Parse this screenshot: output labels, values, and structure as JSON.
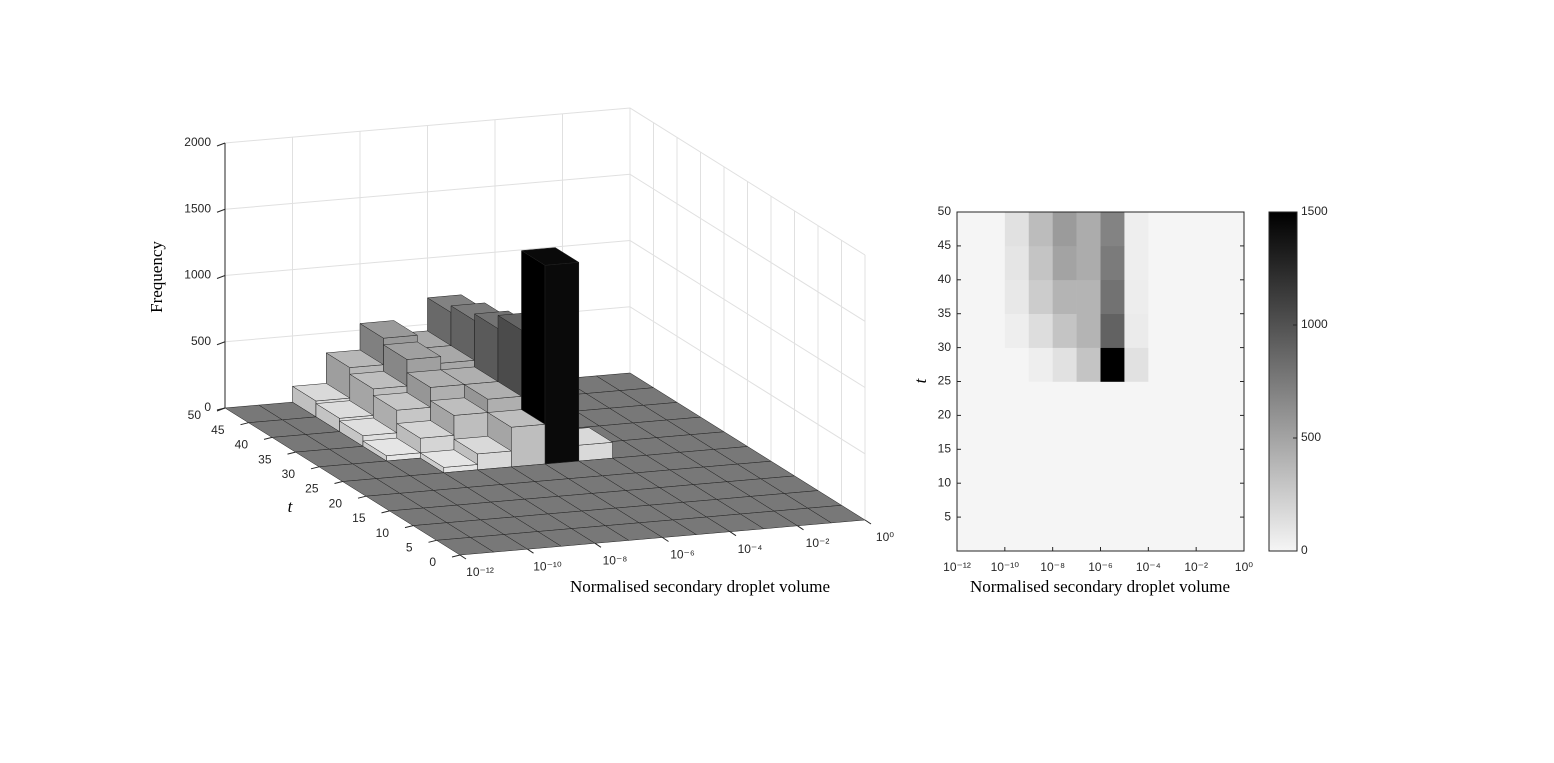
{
  "chart_data": [
    {
      "type": "bar3d",
      "xlabel": "Normalised secondary droplet volume",
      "ylabel": "t",
      "zlabel": "Frequency",
      "log_x": true,
      "xlim": [
        1e-12,
        1
      ],
      "xticks": [
        {
          "value": 1e-12,
          "label": "10⁻¹²"
        },
        {
          "value": 1e-10,
          "label": "10⁻¹⁰"
        },
        {
          "value": 1e-08,
          "label": "10⁻⁸"
        },
        {
          "value": 1e-06,
          "label": "10⁻⁶"
        },
        {
          "value": 0.0001,
          "label": "10⁻⁴"
        },
        {
          "value": 0.01,
          "label": "10⁻²"
        },
        {
          "value": 1,
          "label": "10⁰"
        }
      ],
      "ylim": [
        0,
        50
      ],
      "yticks": [
        0,
        5,
        10,
        15,
        20,
        25,
        30,
        35,
        40,
        45,
        50
      ],
      "zlim": [
        0,
        2000
      ],
      "zticks": [
        0,
        500,
        1000,
        1500,
        2000
      ],
      "grid": true,
      "x_bins": [
        1e-12,
        1e-11,
        1e-10,
        1e-09,
        1e-08,
        1e-07,
        1e-06,
        1e-05,
        0.0001,
        0.001,
        0.01,
        0.1,
        1
      ],
      "t_bins": [
        0,
        5,
        10,
        15,
        20,
        25,
        30,
        35,
        40,
        45,
        50
      ],
      "values": [
        [
          0,
          0,
          0,
          0,
          0,
          0,
          0,
          0,
          0,
          0,
          0,
          0
        ],
        [
          0,
          0,
          0,
          0,
          0,
          0,
          0,
          0,
          0,
          0,
          0,
          0
        ],
        [
          0,
          0,
          0,
          0,
          0,
          0,
          0,
          0,
          0,
          0,
          0,
          0
        ],
        [
          0,
          0,
          0,
          0,
          0,
          0,
          0,
          0,
          0,
          0,
          0,
          0
        ],
        [
          0,
          0,
          0,
          0,
          0,
          0,
          0,
          0,
          0,
          0,
          0,
          0
        ],
        [
          0,
          0,
          0,
          40,
          120,
          300,
          1500,
          120,
          0,
          0,
          0,
          0
        ],
        [
          0,
          0,
          40,
          150,
          300,
          400,
          900,
          60,
          0,
          0,
          0,
          0
        ],
        [
          0,
          0,
          80,
          250,
          400,
          400,
          800,
          50,
          0,
          0,
          0,
          0
        ],
        [
          0,
          0,
          100,
          300,
          500,
          450,
          750,
          40,
          0,
          0,
          0,
          0
        ],
        [
          0,
          0,
          120,
          350,
          550,
          450,
          700,
          40,
          0,
          0,
          0,
          0
        ]
      ]
    },
    {
      "type": "heatmap",
      "xlabel": "Normalised secondary droplet volume",
      "ylabel": "t",
      "log_x": true,
      "xlim": [
        1e-12,
        1
      ],
      "xticks": [
        {
          "value": 1e-12,
          "label": "10⁻¹²"
        },
        {
          "value": 1e-10,
          "label": "10⁻¹⁰"
        },
        {
          "value": 1e-08,
          "label": "10⁻⁸"
        },
        {
          "value": 1e-06,
          "label": "10⁻⁶"
        },
        {
          "value": 0.0001,
          "label": "10⁻⁴"
        },
        {
          "value": 0.01,
          "label": "10⁻²"
        },
        {
          "value": 1,
          "label": "10⁰"
        }
      ],
      "ylim": [
        0,
        50
      ],
      "yticks": [
        5,
        10,
        15,
        20,
        25,
        30,
        35,
        40,
        45,
        50
      ],
      "clim": [
        0,
        1500
      ],
      "cticks": [
        0,
        500,
        1000,
        1500
      ],
      "x_bins": [
        1e-12,
        1e-11,
        1e-10,
        1e-09,
        1e-08,
        1e-07,
        1e-06,
        1e-05,
        0.0001,
        0.001,
        0.01,
        0.1,
        1
      ],
      "t_bins": [
        0,
        5,
        10,
        15,
        20,
        25,
        30,
        35,
        40,
        45,
        50
      ],
      "values": [
        [
          0,
          0,
          0,
          0,
          0,
          0,
          0,
          0,
          0,
          0,
          0,
          0
        ],
        [
          0,
          0,
          0,
          0,
          0,
          0,
          0,
          0,
          0,
          0,
          0,
          0
        ],
        [
          0,
          0,
          0,
          0,
          0,
          0,
          0,
          0,
          0,
          0,
          0,
          0
        ],
        [
          0,
          0,
          0,
          0,
          0,
          0,
          0,
          0,
          0,
          0,
          0,
          0
        ],
        [
          0,
          0,
          0,
          0,
          0,
          0,
          0,
          0,
          0,
          0,
          0,
          0
        ],
        [
          0,
          0,
          0,
          40,
          120,
          300,
          1500,
          120,
          0,
          0,
          0,
          0
        ],
        [
          0,
          0,
          40,
          150,
          300,
          400,
          900,
          60,
          0,
          0,
          0,
          0
        ],
        [
          0,
          0,
          80,
          250,
          400,
          400,
          800,
          50,
          0,
          0,
          0,
          0
        ],
        [
          0,
          0,
          100,
          300,
          500,
          450,
          750,
          40,
          0,
          0,
          0,
          0
        ],
        [
          0,
          0,
          120,
          350,
          550,
          450,
          700,
          40,
          0,
          0,
          0,
          0
        ]
      ]
    }
  ]
}
